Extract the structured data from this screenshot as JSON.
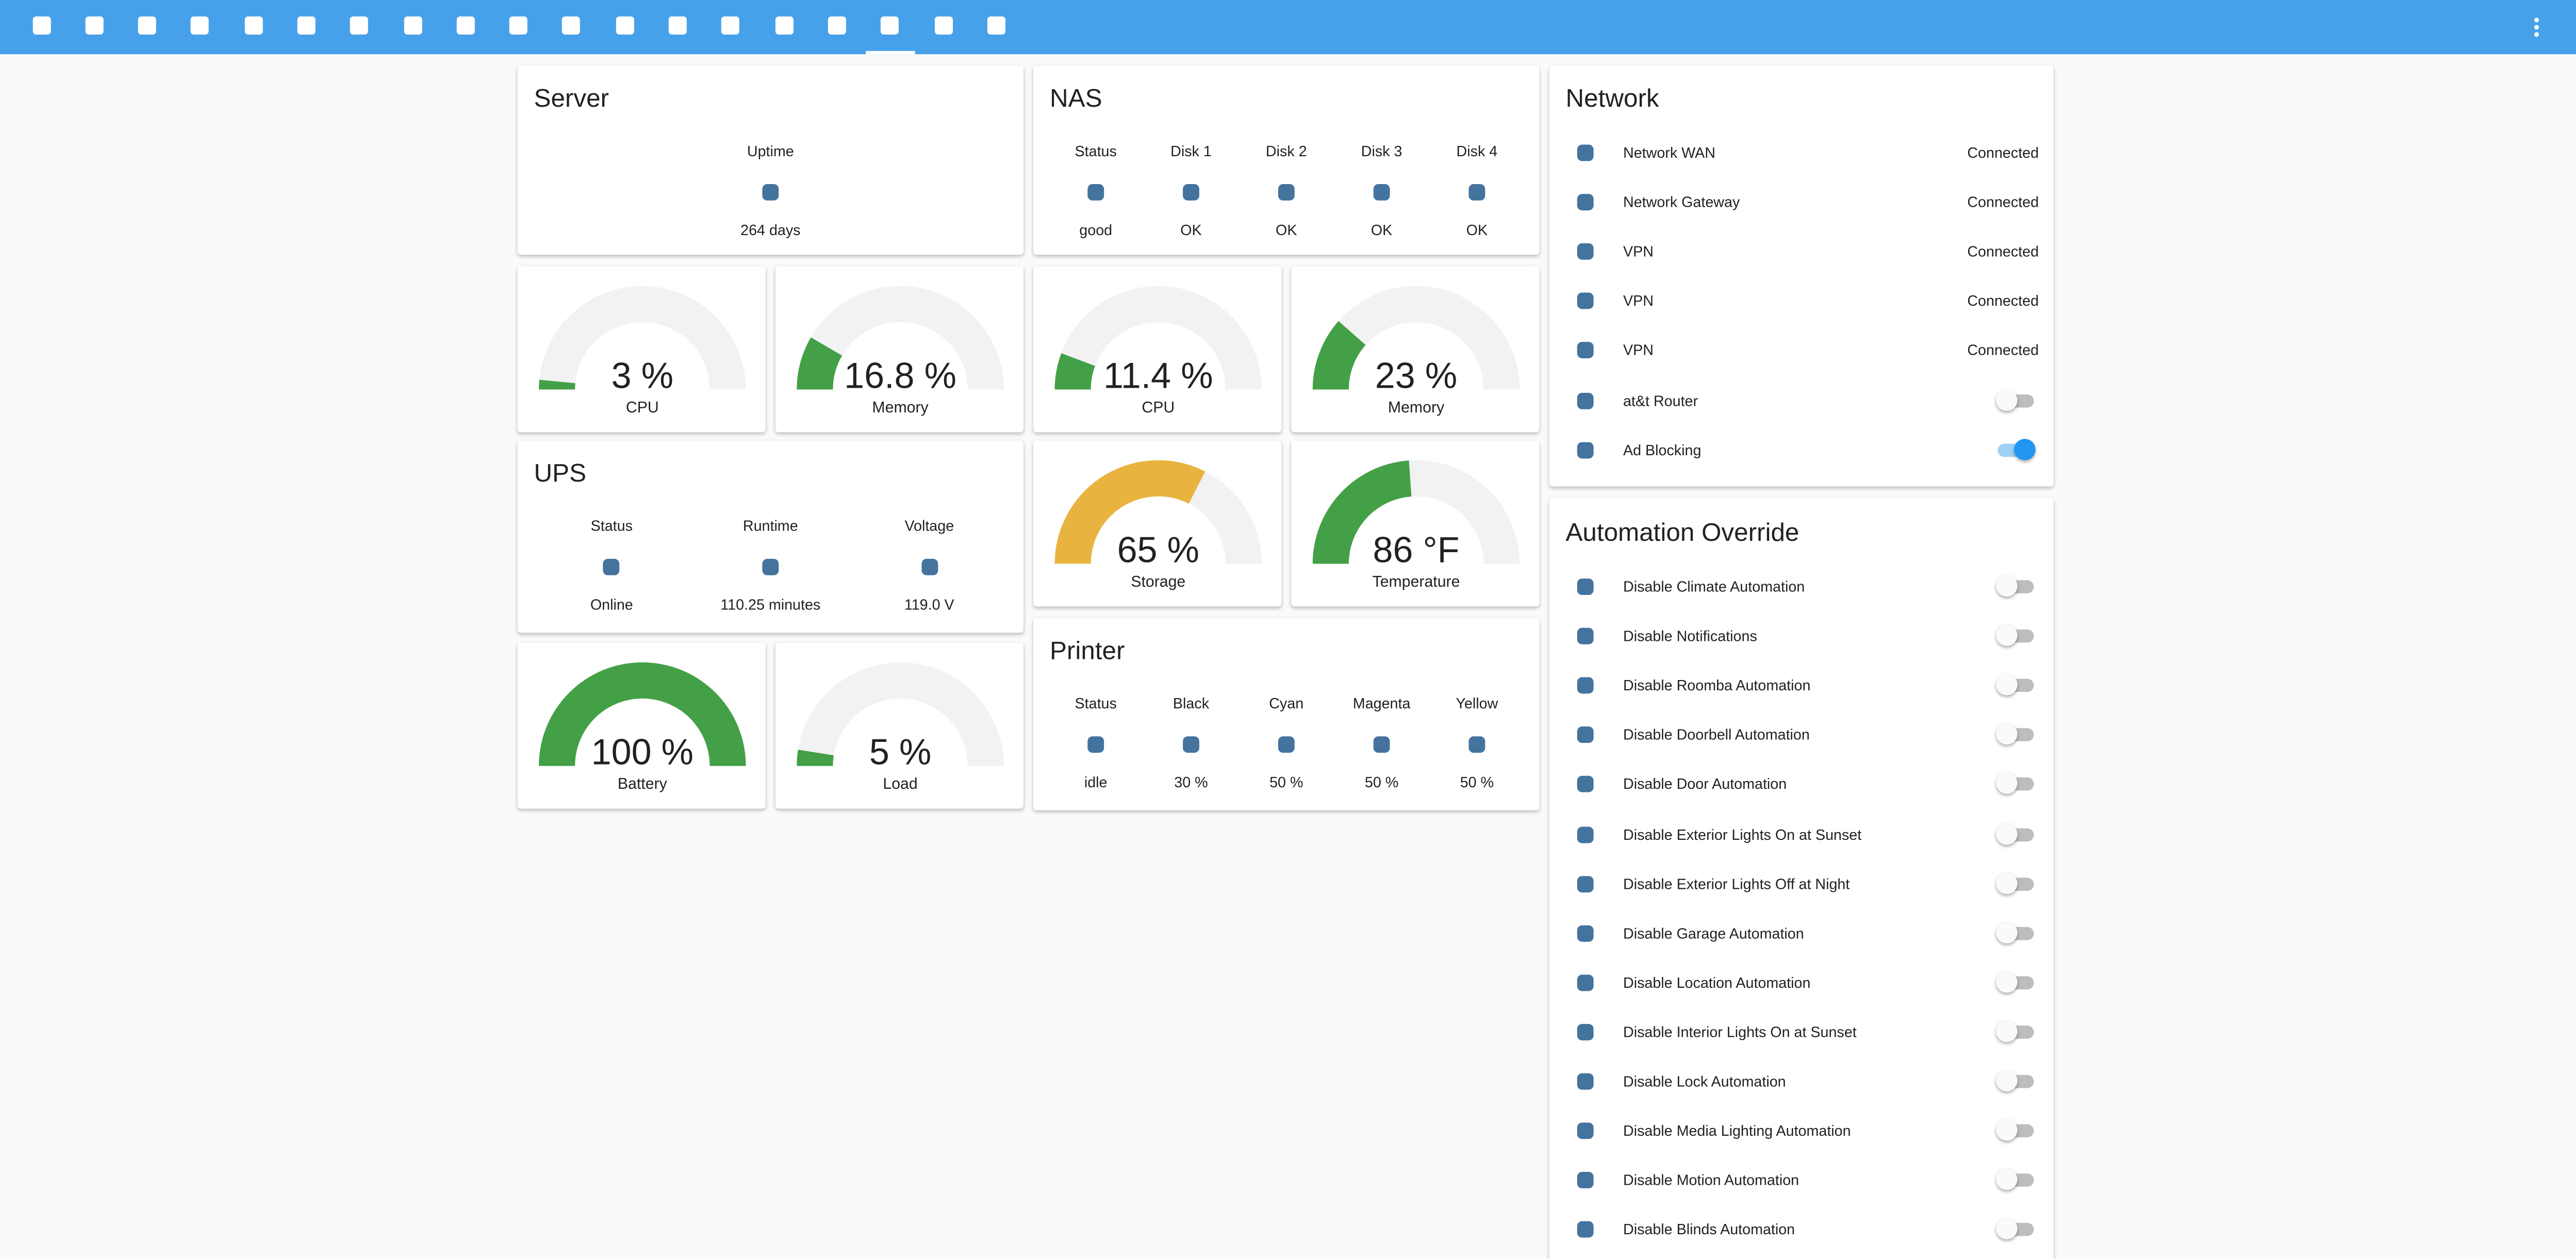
{
  "server": {
    "title": "Server",
    "items": [
      {
        "label": "Uptime",
        "value": "264 days"
      }
    ]
  },
  "nas": {
    "title": "NAS",
    "items": [
      {
        "label": "Status",
        "value": "good"
      },
      {
        "label": "Disk 1",
        "value": "OK"
      },
      {
        "label": "Disk 2",
        "value": "OK"
      },
      {
        "label": "Disk 3",
        "value": "OK"
      },
      {
        "label": "Disk 4",
        "value": "OK"
      }
    ]
  },
  "ups": {
    "title": "UPS",
    "items": [
      {
        "label": "Status",
        "value": "Online"
      },
      {
        "label": "Runtime",
        "value": "110.25 minutes"
      },
      {
        "label": "Voltage",
        "value": "119.0 V"
      }
    ]
  },
  "printer": {
    "title": "Printer",
    "items": [
      {
        "label": "Status",
        "value": "idle"
      },
      {
        "label": "Black",
        "value": "30 %"
      },
      {
        "label": "Cyan",
        "value": "50 %"
      },
      {
        "label": "Magenta",
        "value": "50 %"
      },
      {
        "label": "Yellow",
        "value": "50 %"
      }
    ]
  },
  "gauges": [
    {
      "value": 3,
      "unit": "%",
      "name": "CPU",
      "min": 0,
      "max": 100,
      "color": "#43a047"
    },
    {
      "value": 16.8,
      "unit": "%",
      "name": "Memory",
      "min": 0,
      "max": 100,
      "color": "#43a047"
    },
    {
      "value": 11.4,
      "unit": "%",
      "name": "CPU",
      "min": 0,
      "max": 100,
      "color": "#43a047"
    },
    {
      "value": 23,
      "unit": "%",
      "name": "Memory",
      "min": 0,
      "max": 100,
      "color": "#43a047"
    },
    {
      "value": 65,
      "unit": "%",
      "name": "Storage",
      "min": 0,
      "max": 100,
      "color": "#e8b43f"
    },
    {
      "value": 86,
      "unit": "°F",
      "name": "Temperature",
      "min": 0,
      "max": 180,
      "color": "#43a047"
    },
    {
      "value": 100,
      "unit": "%",
      "name": "Battery",
      "min": 0,
      "max": 100,
      "color": "#43a047"
    },
    {
      "value": 5,
      "unit": "%",
      "name": "Load",
      "min": 0,
      "max": 100,
      "color": "#43a047"
    }
  ],
  "network": {
    "title": "Network",
    "rows": [
      {
        "label": "Network WAN",
        "state": "Connected"
      },
      {
        "label": "Network Gateway",
        "state": "Connected"
      },
      {
        "label": "VPN",
        "state": "Connected"
      },
      {
        "label": "VPN",
        "state": "Connected"
      },
      {
        "label": "VPN",
        "state": "Connected"
      },
      {
        "label": "at&t Router",
        "toggle": false
      },
      {
        "label": "Ad Blocking",
        "toggle": true
      }
    ]
  },
  "automation": {
    "title": "Automation Override",
    "rows": [
      {
        "label": "Disable Climate Automation",
        "toggle": false
      },
      {
        "label": "Disable Notifications",
        "toggle": false
      },
      {
        "label": "Disable Roomba Automation",
        "toggle": false
      },
      {
        "label": "Disable Doorbell Automation",
        "toggle": false
      },
      {
        "label": "Disable Door Automation",
        "toggle": false
      },
      {
        "label": "Disable Exterior Lights On at Sunset",
        "toggle": false
      },
      {
        "label": "Disable Exterior Lights Off at Night",
        "toggle": false
      },
      {
        "label": "Disable Garage Automation",
        "toggle": false
      },
      {
        "label": "Disable Location Automation",
        "toggle": false
      },
      {
        "label": "Disable Interior Lights On at Sunset",
        "toggle": false
      },
      {
        "label": "Disable Lock Automation",
        "toggle": false
      },
      {
        "label": "Disable Media Lighting Automation",
        "toggle": false
      },
      {
        "label": "Disable Motion Automation",
        "toggle": false
      },
      {
        "label": "Disable Blinds Automation",
        "toggle": false
      }
    ]
  }
}
